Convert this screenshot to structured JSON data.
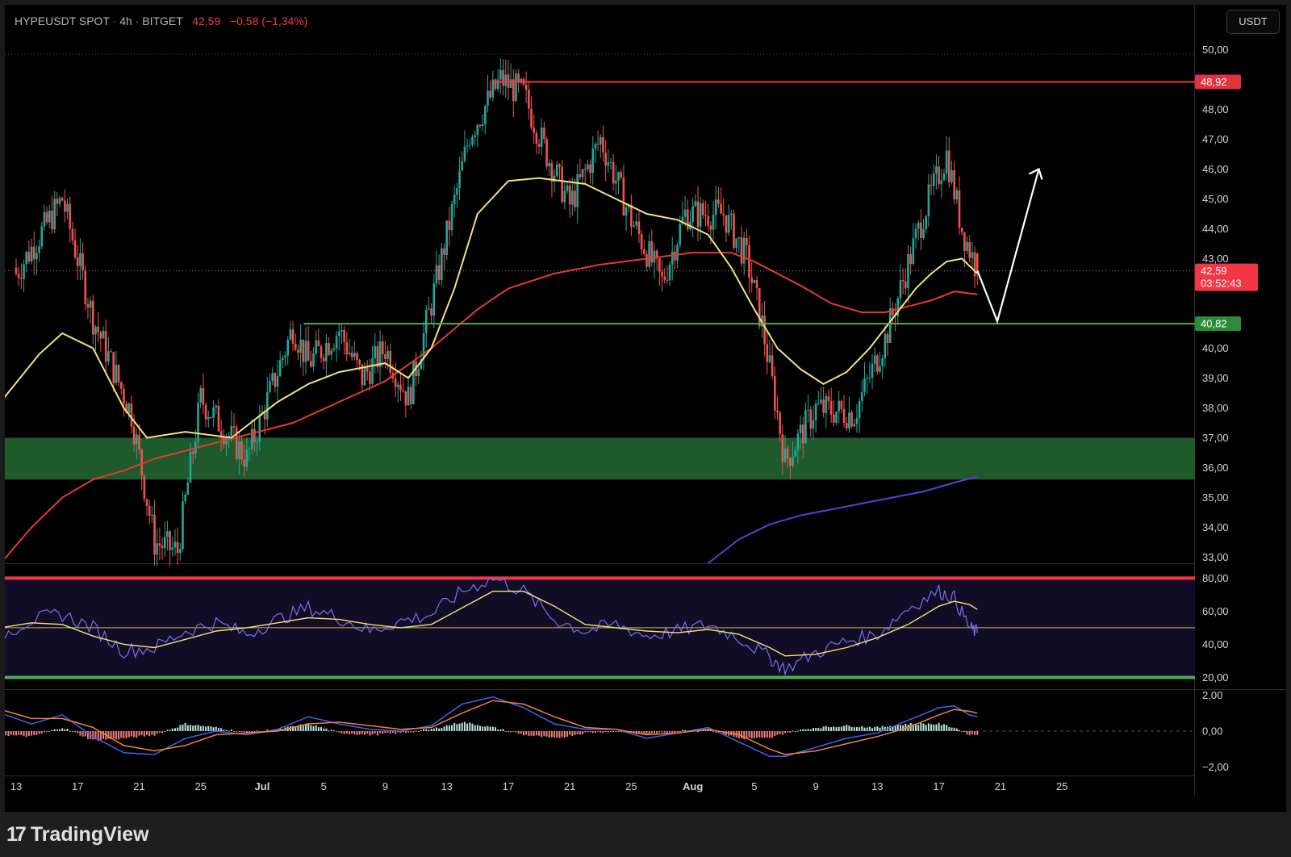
{
  "header": {
    "symbol": "HYPEUSDT SPOT",
    "interval": "4h",
    "exchange": "BITGET",
    "last_price": "42,59",
    "change": "−0,58 (−1,34%)"
  },
  "currency_button": "USDT",
  "footer": {
    "logo_text": "TradingView"
  },
  "colors": {
    "background": "#000000",
    "candle_up": "#26a69a",
    "candle_down": "#ef5350",
    "resistance": "#f23645",
    "support": "#4caf50",
    "demand_zone": "#1e5a2b",
    "ema_fast": "#f2e37a",
    "ema_slow": "#e53935",
    "ema_long": "#5b3fd0",
    "rsi": "#7e6ee8",
    "macd": "#3f62f0",
    "macd_signal": "#f0803c"
  },
  "chart_data": [
    {
      "type": "candlestick",
      "pane": "price",
      "title": "HYPEUSDT SPOT · 4h · BITGET",
      "ylim": [
        32.8,
        50.3
      ],
      "y_ticks": [
        "33,00",
        "34,00",
        "35,00",
        "36,00",
        "37,00",
        "38,00",
        "39,00",
        "40,00",
        "41,00",
        "42,00",
        "43,00",
        "44,00",
        "45,00",
        "46,00",
        "47,00",
        "48,00",
        "49,00",
        "50,00"
      ],
      "x_ticks": [
        "13",
        "17",
        "21",
        "25",
        "Jul",
        "5",
        "9",
        "13",
        "17",
        "21",
        "25",
        "Aug",
        "5",
        "9",
        "13",
        "17",
        "21",
        "25"
      ],
      "price_path": [
        [
          13,
          42.5
        ],
        [
          16,
          45.0
        ],
        [
          18,
          41.0
        ],
        [
          20.5,
          37.8
        ],
        [
          22,
          33.5
        ],
        [
          23.5,
          33.2
        ],
        [
          25,
          38.3
        ],
        [
          28,
          36.3
        ],
        [
          31,
          40.7
        ],
        [
          32,
          39.5
        ],
        [
          34,
          40.6
        ],
        [
          35.5,
          39.0
        ],
        [
          37,
          40.0
        ],
        [
          38.5,
          38.3
        ],
        [
          40,
          41.5
        ],
        [
          42.5,
          47.2
        ],
        [
          44.5,
          49.0
        ],
        [
          46,
          48.5
        ],
        [
          47.5,
          46.5
        ],
        [
          49,
          44.8
        ],
        [
          51,
          47.0
        ],
        [
          53,
          44.3
        ],
        [
          55,
          42.2
        ],
        [
          56.5,
          44.5
        ],
        [
          59,
          44.5
        ],
        [
          60.5,
          43.0
        ],
        [
          61.5,
          40.8
        ],
        [
          62.5,
          37.8
        ],
        [
          63,
          36.2
        ],
        [
          65,
          38.0
        ],
        [
          67.5,
          37.8
        ],
        [
          69.5,
          40.3
        ],
        [
          72,
          44.5
        ],
        [
          73.5,
          46.5
        ],
        [
          74.5,
          44.0
        ],
        [
          75.5,
          42.6
        ]
      ],
      "last_candle_open": 43.17,
      "ema_fast": [
        [
          12,
          38.2
        ],
        [
          14.5,
          39.8
        ],
        [
          16,
          40.5
        ],
        [
          18,
          40.0
        ],
        [
          20,
          38.0
        ],
        [
          21.5,
          37.0
        ],
        [
          24,
          37.2
        ],
        [
          27,
          37.0
        ],
        [
          30,
          38.2
        ],
        [
          32,
          38.8
        ],
        [
          34,
          39.2
        ],
        [
          37,
          39.5
        ],
        [
          38.5,
          39.0
        ],
        [
          40,
          40.0
        ],
        [
          41.5,
          42.0
        ],
        [
          43,
          44.5
        ],
        [
          45,
          45.6
        ],
        [
          47,
          45.7
        ],
        [
          50,
          45.5
        ],
        [
          52,
          45.0
        ],
        [
          54,
          44.5
        ],
        [
          56,
          44.3
        ],
        [
          58,
          43.8
        ],
        [
          59.5,
          42.7
        ],
        [
          61,
          41.3
        ],
        [
          62.5,
          40.0
        ],
        [
          64,
          39.3
        ],
        [
          65.5,
          38.8
        ],
        [
          67,
          39.2
        ],
        [
          68.5,
          40.0
        ],
        [
          70,
          41.0
        ],
        [
          71.5,
          42.0
        ],
        [
          72.5,
          42.5
        ],
        [
          73.5,
          42.9
        ],
        [
          74.5,
          43.0
        ],
        [
          75.5,
          42.5
        ]
      ],
      "ema_slow": [
        [
          12,
          32.8
        ],
        [
          14,
          34.0
        ],
        [
          16,
          35.0
        ],
        [
          18,
          35.6
        ],
        [
          20,
          35.9
        ],
        [
          22,
          36.3
        ],
        [
          25,
          36.7
        ],
        [
          28,
          37.1
        ],
        [
          31,
          37.5
        ],
        [
          34,
          38.2
        ],
        [
          37,
          38.9
        ],
        [
          40,
          40.0
        ],
        [
          43,
          41.3
        ],
        [
          45,
          42.0
        ],
        [
          48,
          42.5
        ],
        [
          51,
          42.8
        ],
        [
          54,
          43.0
        ],
        [
          57,
          43.2
        ],
        [
          59.5,
          43.2
        ],
        [
          61,
          42.9
        ],
        [
          62.5,
          42.5
        ],
        [
          64,
          42.1
        ],
        [
          66,
          41.5
        ],
        [
          68,
          41.2
        ],
        [
          69.5,
          41.2
        ],
        [
          71,
          41.4
        ],
        [
          72.5,
          41.6
        ],
        [
          74,
          41.9
        ],
        [
          75.5,
          41.8
        ]
      ],
      "ema_long": [
        [
          58,
          32.8
        ],
        [
          60,
          33.6
        ],
        [
          62,
          34.1
        ],
        [
          64,
          34.4
        ],
        [
          66,
          34.6
        ],
        [
          68,
          34.8
        ],
        [
          70,
          35.0
        ],
        [
          72,
          35.2
        ],
        [
          74,
          35.5
        ],
        [
          75.5,
          35.7
        ]
      ],
      "resistance_level": 48.92,
      "support_level": 40.82,
      "demand_zone": [
        35.6,
        37.0
      ],
      "price_labels": {
        "resistance": "48,92",
        "support": "40,82",
        "last": "42,59",
        "countdown": "03:52:43"
      },
      "projection": [
        [
          75.5,
          42.6
        ],
        [
          76.8,
          40.9
        ],
        [
          79.5,
          46.0
        ]
      ]
    },
    {
      "type": "line",
      "pane": "rsi",
      "ylim": [
        10,
        90
      ],
      "y_ticks": [
        "20,00",
        "40,00",
        "60,00",
        "80,00"
      ],
      "levels": [
        80,
        50,
        20
      ],
      "rsi": [
        [
          12,
          45
        ],
        [
          14,
          55
        ],
        [
          16,
          58
        ],
        [
          18,
          50
        ],
        [
          20,
          36
        ],
        [
          22,
          38
        ],
        [
          24,
          48
        ],
        [
          26,
          53
        ],
        [
          28,
          46
        ],
        [
          30,
          55
        ],
        [
          32,
          62
        ],
        [
          34,
          56
        ],
        [
          36,
          48
        ],
        [
          38,
          54
        ],
        [
          40,
          58
        ],
        [
          42,
          72
        ],
        [
          44,
          80
        ],
        [
          46,
          72
        ],
        [
          48,
          55
        ],
        [
          50,
          48
        ],
        [
          52,
          52
        ],
        [
          54,
          45
        ],
        [
          56,
          48
        ],
        [
          58,
          52
        ],
        [
          60,
          44
        ],
        [
          62,
          32
        ],
        [
          63,
          25
        ],
        [
          65,
          35
        ],
        [
          67,
          42
        ],
        [
          69,
          46
        ],
        [
          71,
          62
        ],
        [
          73,
          72
        ],
        [
          74,
          68
        ],
        [
          75,
          50
        ],
        [
          75.5,
          47
        ]
      ],
      "rsi_ma": [
        [
          12,
          50
        ],
        [
          14,
          53
        ],
        [
          16,
          52
        ],
        [
          18,
          45
        ],
        [
          20,
          40
        ],
        [
          22,
          38
        ],
        [
          24,
          43
        ],
        [
          26,
          48
        ],
        [
          28,
          50
        ],
        [
          30,
          53
        ],
        [
          32,
          56
        ],
        [
          34,
          55
        ],
        [
          36,
          52
        ],
        [
          38,
          50
        ],
        [
          40,
          52
        ],
        [
          42,
          62
        ],
        [
          44,
          72
        ],
        [
          46,
          72
        ],
        [
          48,
          63
        ],
        [
          50,
          52
        ],
        [
          52,
          50
        ],
        [
          54,
          48
        ],
        [
          56,
          47
        ],
        [
          58,
          49
        ],
        [
          60,
          46
        ],
        [
          62,
          38
        ],
        [
          63,
          33
        ],
        [
          65,
          34
        ],
        [
          67,
          38
        ],
        [
          69,
          44
        ],
        [
          71,
          52
        ],
        [
          73,
          63
        ],
        [
          74,
          66
        ],
        [
          75,
          64
        ],
        [
          75.5,
          61
        ]
      ]
    },
    {
      "type": "line",
      "pane": "macd",
      "ylim": [
        -2.4,
        2.4
      ],
      "y_ticks": [
        "−2,00",
        "0,00",
        "2,00"
      ],
      "macd": [
        [
          12,
          1.0
        ],
        [
          14,
          0.4
        ],
        [
          16,
          0.9
        ],
        [
          18,
          -0.3
        ],
        [
          20,
          -1.2
        ],
        [
          22,
          -1.3
        ],
        [
          24,
          -0.4
        ],
        [
          26,
          0.0
        ],
        [
          28,
          -0.2
        ],
        [
          30,
          0.1
        ],
        [
          32,
          0.8
        ],
        [
          34,
          0.4
        ],
        [
          36,
          0.1
        ],
        [
          38,
          0.0
        ],
        [
          40,
          0.3
        ],
        [
          42,
          1.5
        ],
        [
          44,
          1.9
        ],
        [
          46,
          1.3
        ],
        [
          48,
          0.4
        ],
        [
          50,
          0.1
        ],
        [
          52,
          0.1
        ],
        [
          54,
          -0.4
        ],
        [
          56,
          -0.1
        ],
        [
          58,
          0.2
        ],
        [
          60,
          -0.6
        ],
        [
          62,
          -1.4
        ],
        [
          63,
          -1.4
        ],
        [
          65,
          -0.9
        ],
        [
          67,
          -0.4
        ],
        [
          69,
          -0.1
        ],
        [
          71,
          0.6
        ],
        [
          73,
          1.3
        ],
        [
          74,
          1.4
        ],
        [
          75,
          0.9
        ],
        [
          75.5,
          0.8
        ]
      ],
      "signal": [
        [
          12,
          1.2
        ],
        [
          14,
          0.7
        ],
        [
          16,
          0.7
        ],
        [
          18,
          0.2
        ],
        [
          20,
          -0.8
        ],
        [
          22,
          -1.1
        ],
        [
          24,
          -0.8
        ],
        [
          26,
          -0.2
        ],
        [
          28,
          -0.1
        ],
        [
          30,
          0.0
        ],
        [
          32,
          0.4
        ],
        [
          34,
          0.5
        ],
        [
          36,
          0.3
        ],
        [
          38,
          0.1
        ],
        [
          40,
          0.2
        ],
        [
          42,
          1.0
        ],
        [
          44,
          1.7
        ],
        [
          46,
          1.5
        ],
        [
          48,
          0.8
        ],
        [
          50,
          0.2
        ],
        [
          52,
          0.1
        ],
        [
          54,
          -0.2
        ],
        [
          56,
          -0.1
        ],
        [
          58,
          0.1
        ],
        [
          60,
          -0.2
        ],
        [
          62,
          -1.0
        ],
        [
          63,
          -1.3
        ],
        [
          65,
          -1.1
        ],
        [
          67,
          -0.7
        ],
        [
          69,
          -0.3
        ],
        [
          71,
          0.2
        ],
        [
          73,
          0.9
        ],
        [
          74,
          1.2
        ],
        [
          75,
          1.1
        ],
        [
          75.5,
          1.0
        ]
      ]
    }
  ]
}
